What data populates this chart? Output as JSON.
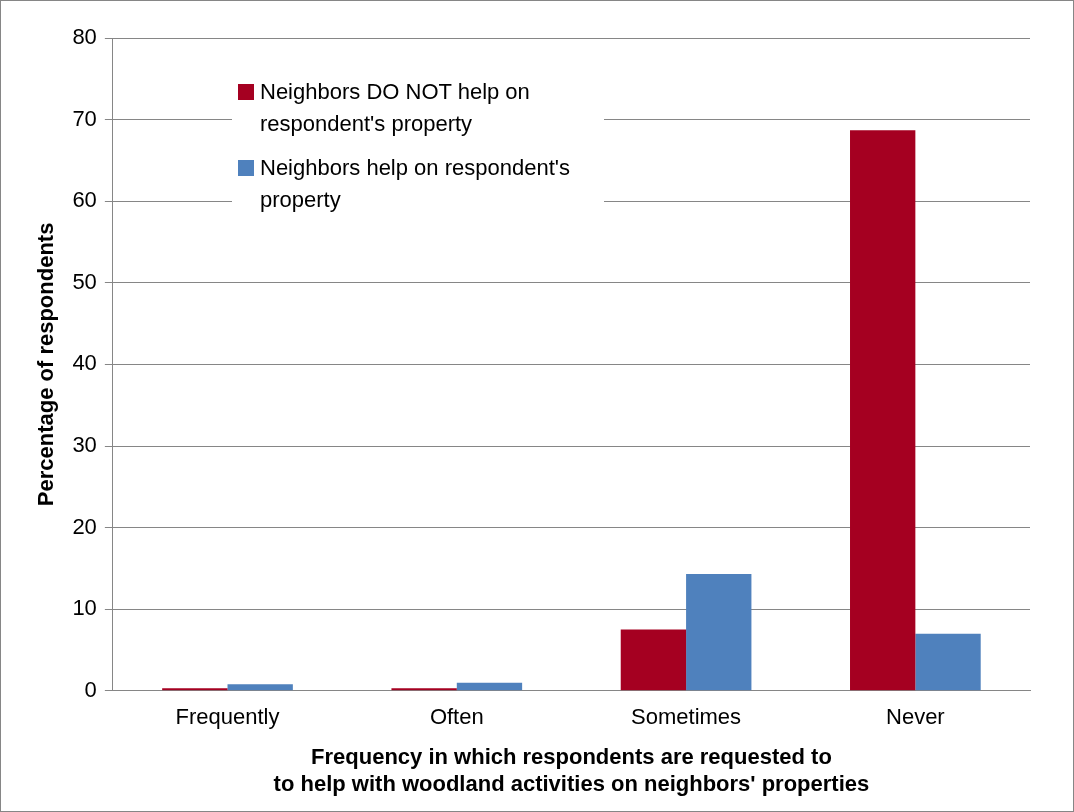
{
  "chart_data": {
    "type": "bar",
    "xlabel": "Frequency in which respondents are requested to\nto help with woodland activities on neighbors' properties",
    "ylabel": "Percentage of respondents",
    "categories": [
      "Frequently",
      "Often",
      "Sometimes",
      "Never"
    ],
    "series": [
      {
        "name": "Neighbors DO NOT help on respondent's property",
        "color": "#a50021",
        "values": [
          0.3,
          0.3,
          7.5,
          68.7
        ]
      },
      {
        "name": "Neighbors help on respondent's property",
        "color": "#4f81bd",
        "values": [
          0.8,
          1.0,
          14.3,
          7.0
        ]
      }
    ],
    "ylim": [
      0,
      80
    ],
    "yticks": [
      0,
      10,
      20,
      30,
      40,
      50,
      60,
      70,
      80
    ],
    "grid": "y",
    "legend": "top left"
  }
}
